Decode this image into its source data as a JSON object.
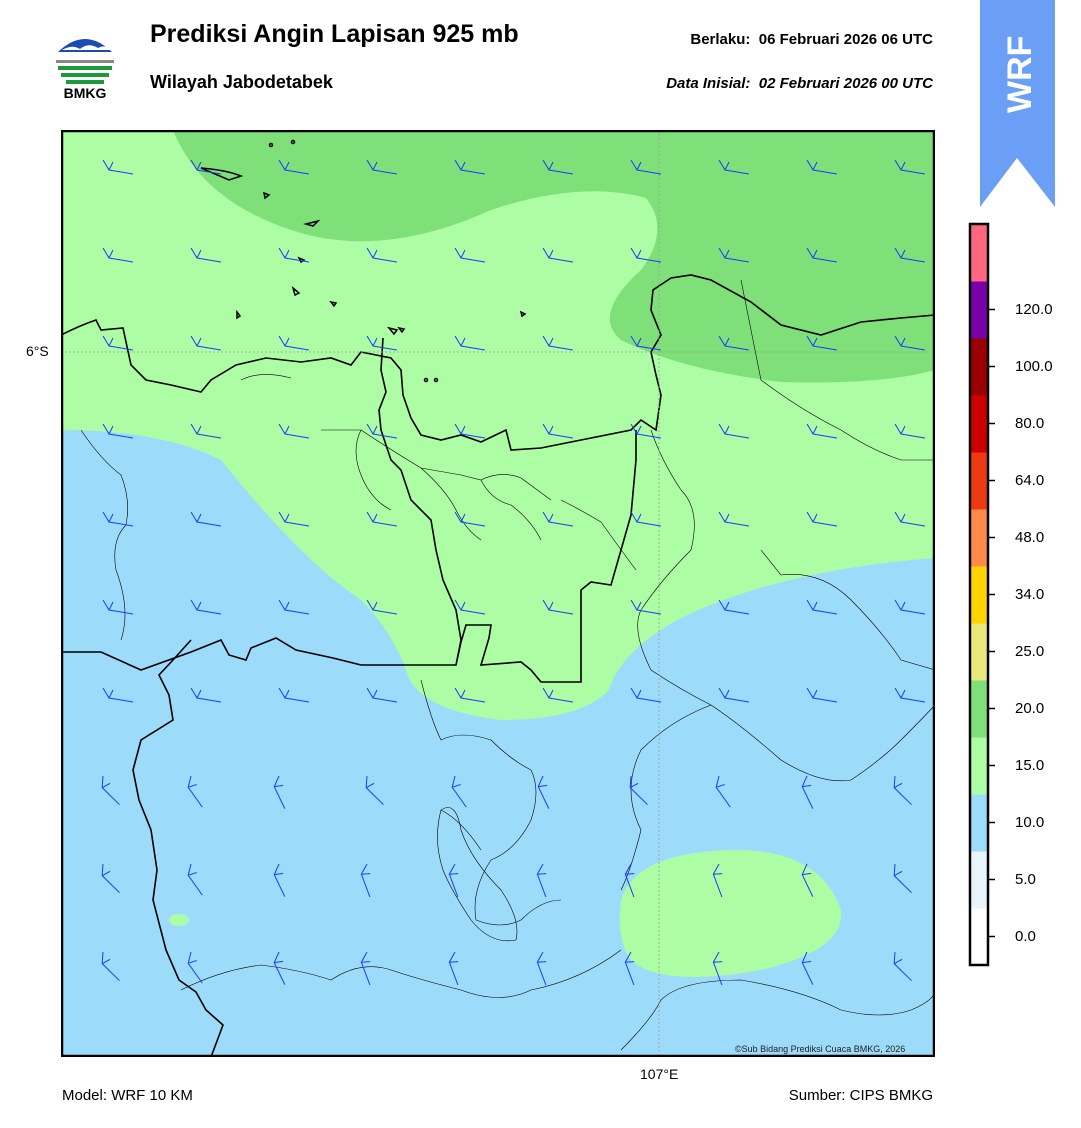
{
  "header": {
    "logo_text": "BMKG",
    "title": "Prediksi Angin Lapisan 925 mb",
    "subtitle": "Wilayah Jabodetabek",
    "valid_label": "Berlaku:",
    "valid_time": "06 Februari 2026 06 UTC",
    "init_label": "Data Inisial:",
    "init_time": "02 Februari 2026 00 UTC"
  },
  "badge": {
    "text": "WRF",
    "color": "#6b9ff6"
  },
  "map": {
    "lat_label": "6°S",
    "lon_label": "107°E",
    "credit": "©Sub Bidang Prediksi Cuaca BMKG, 2026",
    "speed_class_colors": {
      "5-10": "#9ddbfb",
      "10-15": "#adfda4",
      "15-20": "#7fe07a"
    },
    "barb_color": "#1a3dff"
  },
  "colorbar": {
    "levels": [
      "0.0",
      "5.0",
      "10.0",
      "15.0",
      "20.0",
      "25.0",
      "34.0",
      "48.0",
      "64.0",
      "80.0",
      "100.0",
      "120.0"
    ],
    "colors": [
      "#ffffff",
      "#e8f5fd",
      "#9ddbfb",
      "#adfda4",
      "#7fe07a",
      "#e8e87a",
      "#ffd400",
      "#ff8a4a",
      "#ee3a12",
      "#cc0000",
      "#9a0000",
      "#7a00aa",
      "#ff6680"
    ]
  },
  "footer": {
    "model": "Model: WRF 10 KM",
    "source": "Sumber: CIPS BMKG"
  }
}
